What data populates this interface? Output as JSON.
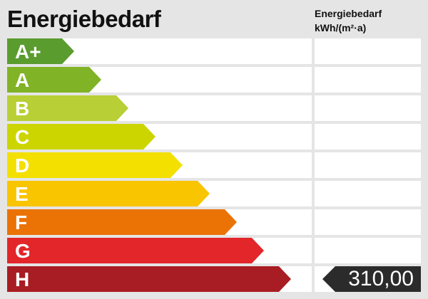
{
  "title": "Energiebedarf",
  "column_header": {
    "line1": "Energiebedarf",
    "line2": "kWh/(m²·a)"
  },
  "classes": [
    {
      "label": "A+",
      "color": "#5a9c2e"
    },
    {
      "label": "A",
      "color": "#80b326"
    },
    {
      "label": "B",
      "color": "#b8cf35"
    },
    {
      "label": "C",
      "color": "#cdd500"
    },
    {
      "label": "D",
      "color": "#f3e000"
    },
    {
      "label": "E",
      "color": "#f9c400"
    },
    {
      "label": "F",
      "color": "#eb7205"
    },
    {
      "label": "G",
      "color": "#e2262a"
    },
    {
      "label": "H",
      "color": "#a81c23"
    }
  ],
  "selected_class": "H",
  "value": "310,00"
}
